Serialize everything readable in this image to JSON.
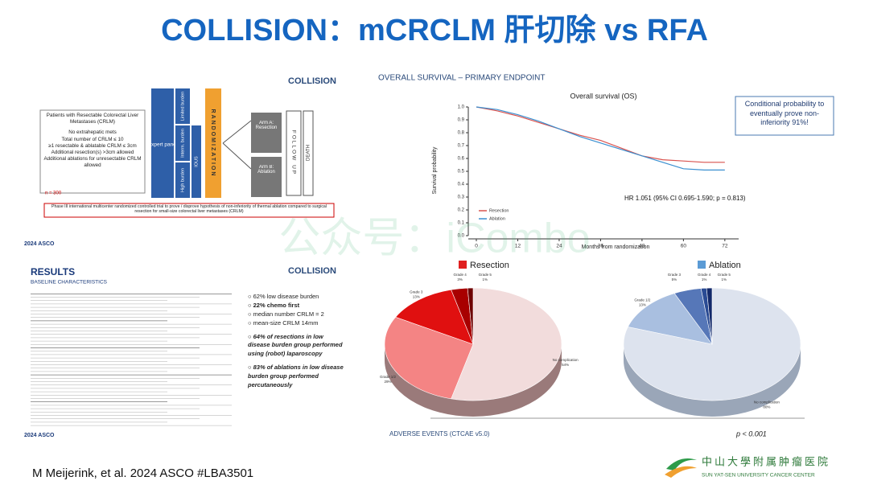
{
  "header": {
    "title": "COLLISION：mCRCLM 肝切除 vs RFA"
  },
  "watermark": "公众号：iCombo",
  "design_panel": {
    "logo": "COLLISION",
    "criteria_title": "Patients with Resectable Colorectal Liver Metastases (CRLM)",
    "criteria": [
      "No extrahepatic mets",
      "Total number of CRLM ≤ 10",
      "≥1 resectable & ablatable CRLM ≤ 3cm",
      "Additional resection(s) >3cm allowed",
      "Additional ablations for unresectable CRLM allowed"
    ],
    "n": "n = 300",
    "expert": "Expert panel",
    "burden": [
      "Limited burden",
      "Interm. burden",
      "High burden"
    ],
    "ious": "IOUS",
    "randomization": "RANDOMIZATION",
    "arms": [
      "Arm A: Resection",
      "Arm B: Ablation"
    ],
    "follow_up": "FOLLOW UP",
    "death": "DEATH",
    "trial_note": "Phase III international multicenter randomized controlled trial to prove / disprove hypothesis of non-inferiority of thermal ablation compared to surgical resection for small-size colorectal liver metastases (CRLM)",
    "conference": "2024 ASCO"
  },
  "chart_data": {
    "type": "line",
    "heading": "OVERALL SURVIVAL – PRIMARY ENDPOINT",
    "title": "Overall survival (OS)",
    "y_label": "Survival probability",
    "x_label": "Months from randomization",
    "x": [
      0,
      6,
      12,
      18,
      24,
      30,
      36,
      42,
      48,
      54,
      60,
      66,
      72
    ],
    "series": [
      {
        "name": "Resection",
        "color": "#d9534f",
        "values": [
          1.0,
          0.97,
          0.93,
          0.88,
          0.83,
          0.78,
          0.74,
          0.68,
          0.62,
          0.59,
          0.58,
          0.57,
          0.57
        ]
      },
      {
        "name": "Ablation",
        "color": "#3a8fd0",
        "values": [
          1.0,
          0.98,
          0.94,
          0.89,
          0.83,
          0.77,
          0.72,
          0.67,
          0.62,
          0.57,
          0.52,
          0.51,
          0.51
        ]
      }
    ],
    "xlim": [
      0,
      76
    ],
    "ylim": [
      0,
      1.0
    ],
    "xticks": [
      0,
      12,
      24,
      36,
      48,
      60,
      72
    ],
    "yticks": [
      {
        "value": 0,
        "label": "0.0"
      },
      {
        "value": 0.1,
        "label": "0.1"
      },
      {
        "value": 0.2,
        "label": "0.2"
      },
      {
        "value": 0.3,
        "label": "0.3"
      },
      {
        "value": 0.4,
        "label": "0.4"
      },
      {
        "value": 0.5,
        "label": "0.5"
      },
      {
        "value": 0.6,
        "label": "0.6"
      },
      {
        "value": 0.7,
        "label": "0.7"
      },
      {
        "value": 0.8,
        "label": "0.8"
      },
      {
        "value": 0.9,
        "label": "0.9"
      },
      {
        "value": 1,
        "label": "1.0"
      }
    ],
    "callout": "Conditional probability to eventually prove non-inferiority 91%!",
    "annotation": "HR 1.051 (95% CI 0.695-1.590; p = 0.813)"
  },
  "results_panel": {
    "title": "RESULTS",
    "subtitle": "BASELINE CHARACTERISTICS",
    "logo": "COLLISION",
    "bullets": [
      "62% low disease burden",
      "22% chemo first",
      "median number CRLM = 2",
      "mean-size CRLM 14mm"
    ],
    "findings": [
      "64% of resections in low disease burden group performed using (robot) laparoscopy",
      "83% of ablations in low disease burden group performed percutaneously"
    ],
    "conference": "2024 ASCO"
  },
  "pies": [
    {
      "type": "pie",
      "name": "Resection",
      "color": "#e02020",
      "slices": [
        {
          "label": "No complication",
          "value": 54,
          "value_label": "54%",
          "color": "#f2dcdc"
        },
        {
          "label": "Grade 1/2",
          "value": 29,
          "value_label": "29%",
          "color": "#f48484"
        },
        {
          "label": "Grade 3",
          "value": 13,
          "value_label": "13%",
          "color": "#e01010"
        },
        {
          "label": "Grade 4",
          "value": 3,
          "value_label": "3%",
          "color": "#a80000"
        },
        {
          "label": "Grade 5",
          "value": 1,
          "value_label": "1%",
          "color": "#6e0000"
        }
      ]
    },
    {
      "type": "pie",
      "name": "Ablation",
      "color": "#5b9bd5",
      "slices": [
        {
          "label": "No complication",
          "value": 80,
          "value_label": "80%",
          "color": "#dde3ee"
        },
        {
          "label": "Grade 1/2",
          "value": 13,
          "value_label": "13%",
          "color": "#a9bfe0"
        },
        {
          "label": "Grade 3",
          "value": 5,
          "value_label": "5%",
          "color": "#5677b8"
        },
        {
          "label": "Grade 4",
          "value": 1,
          "value_label": "1%",
          "color": "#2a4b94"
        },
        {
          "label": "Grade 5",
          "value": 1,
          "value_label": "1%",
          "color": "#13296a"
        }
      ]
    }
  ],
  "adverse_events": {
    "caption": "ADVERSE EVENTS (CTCAE v5.0)",
    "p_value": "p < 0.001"
  },
  "footer": {
    "citation": "M Meijerink, et al. 2024 ASCO #LBA3501",
    "institution": "中山大學附属肿瘤医院",
    "institution_en": "SUN YAT-SEN UNIVERSITY CANCER CENTER"
  }
}
